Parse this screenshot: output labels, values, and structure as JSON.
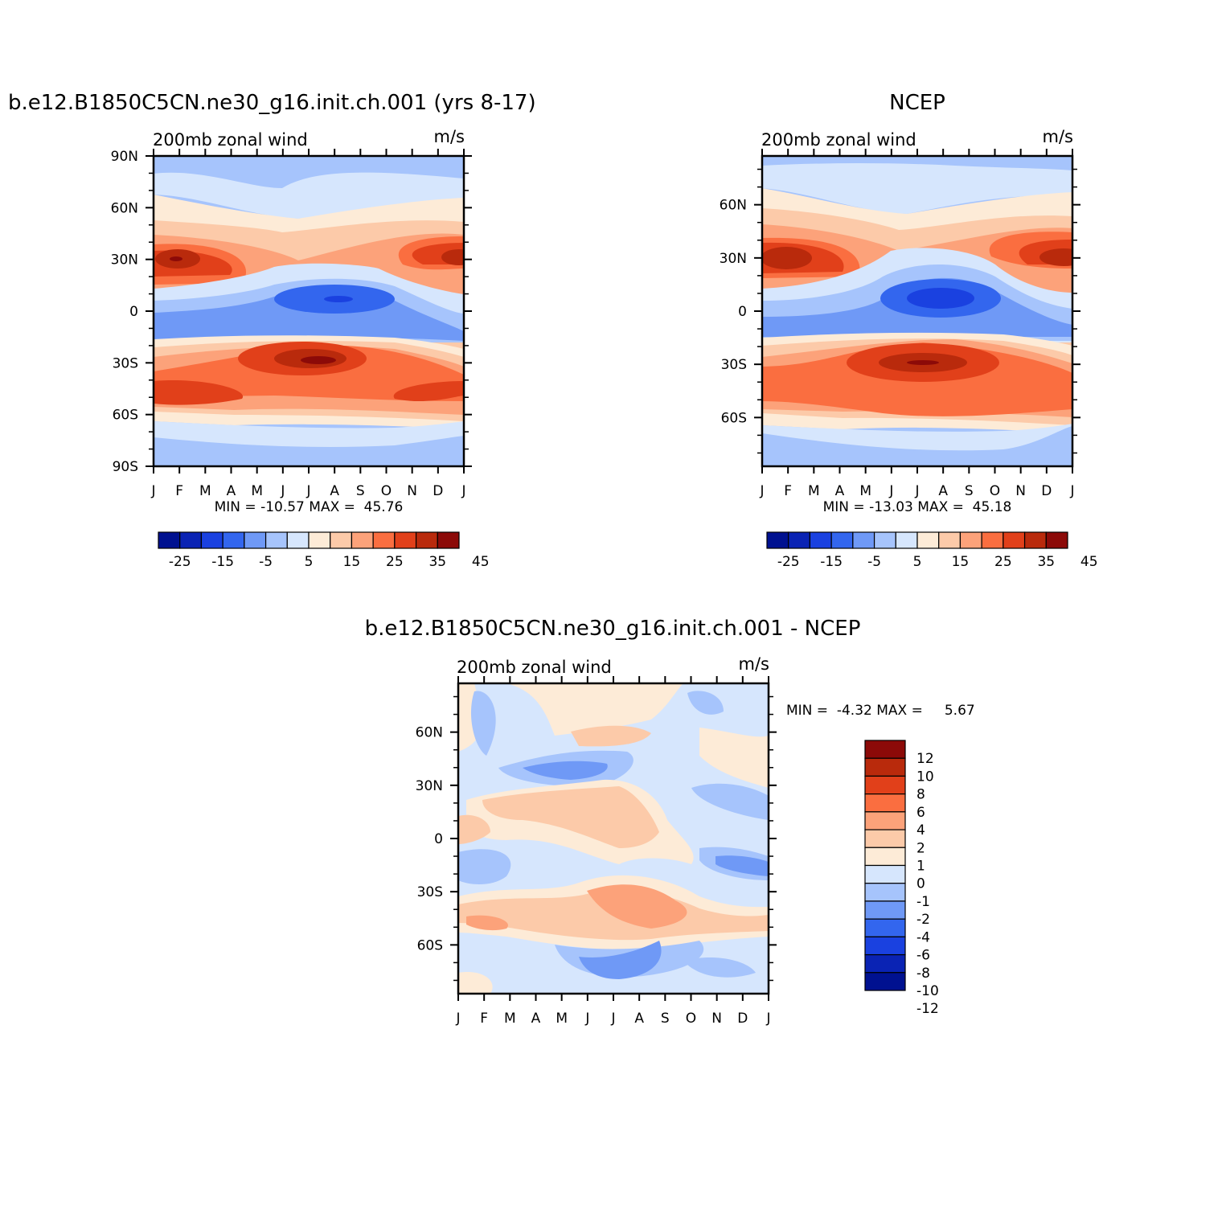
{
  "colors": {
    "field_palette": [
      "#001190",
      "#0a23b4",
      "#1a41e0",
      "#3366ee",
      "#6f99f6",
      "#a6c4fc",
      "#d6e6fd",
      "#fdebd7",
      "#fccaa9",
      "#fca27a",
      "#fa6e40",
      "#e1401a",
      "#b92a0c",
      "#8c0a08"
    ],
    "diff_palette": [
      "#001190",
      "#0a23b4",
      "#1a41e0",
      "#3366ee",
      "#6f99f6",
      "#a6c4fc",
      "#d6e6fd",
      "#fdebd7",
      "#fccaa9",
      "#fca27a",
      "#fa6e40",
      "#e1401a",
      "#b92a0c",
      "#8c0a08"
    ]
  },
  "chart_data": [
    {
      "type": "heatmap",
      "title": "b.e12.B1850C5CN.ne30_g16.init.ch.001 (yrs 8-17)",
      "subtitle_left": "200mb zonal wind",
      "subtitle_right": "m/s",
      "xlabels": [
        "J",
        "F",
        "M",
        "A",
        "M",
        "J",
        "J",
        "A",
        "S",
        "O",
        "N",
        "D",
        "J"
      ],
      "ylabels": [
        "90N",
        "60N",
        "30N",
        "0",
        "30S",
        "60S",
        "90S"
      ],
      "ylabel_values": [
        90,
        60,
        30,
        0,
        -30,
        -60,
        -90
      ],
      "ylim": [
        -90,
        90
      ],
      "minmax_text": "MIN = -10.57 MAX =  45.76",
      "min": -10.57,
      "max": 45.76,
      "colorbar_labels": [
        "-25",
        "-15",
        "-5",
        "5",
        "15",
        "25",
        "35",
        "45"
      ],
      "colorbar_levels": [
        -30,
        -25,
        -20,
        -15,
        -10,
        -5,
        0,
        5,
        10,
        15,
        20,
        25,
        30,
        35,
        40,
        45,
        50
      ],
      "field": "model"
    },
    {
      "type": "heatmap",
      "title": "NCEP",
      "subtitle_left": "200mb zonal wind",
      "subtitle_right": "m/s",
      "xlabels": [
        "J",
        "F",
        "M",
        "A",
        "M",
        "J",
        "J",
        "A",
        "S",
        "O",
        "N",
        "D",
        "J"
      ],
      "ylabels": [
        "60N",
        "30N",
        "0",
        "30S",
        "60S"
      ],
      "ylabel_values": [
        60,
        30,
        0,
        -30,
        -60
      ],
      "ylim": [
        -87.5,
        87.5
      ],
      "minmax_text": "MIN = -13.03 MAX =  45.18",
      "min": -13.03,
      "max": 45.18,
      "colorbar_labels": [
        "-25",
        "-15",
        "-5",
        "5",
        "15",
        "25",
        "35",
        "45"
      ],
      "colorbar_levels": [
        -30,
        -25,
        -20,
        -15,
        -10,
        -5,
        0,
        5,
        10,
        15,
        20,
        25,
        30,
        35,
        40,
        45,
        50
      ],
      "field": "ncep"
    },
    {
      "type": "heatmap",
      "title": "b.e12.B1850C5CN.ne30_g16.init.ch.001 - NCEP",
      "subtitle_left": "200mb zonal wind",
      "subtitle_right": "m/s",
      "xlabels": [
        "J",
        "F",
        "M",
        "A",
        "M",
        "J",
        "J",
        "A",
        "S",
        "O",
        "N",
        "D",
        "J"
      ],
      "ylabels": [
        "60N",
        "30N",
        "0",
        "30S",
        "60S"
      ],
      "ylabel_values": [
        60,
        30,
        0,
        -30,
        -60
      ],
      "ylim": [
        -87.5,
        87.5
      ],
      "minmax_text": "MIN =  -4.32 MAX =     5.67",
      "min": -4.32,
      "max": 5.67,
      "colorbar_labels": [
        "12",
        "10",
        "8",
        "6",
        "4",
        "2",
        "1",
        "0",
        "-1",
        "-2",
        "-4",
        "-6",
        "-8",
        "-10",
        "-12"
      ],
      "colorbar_levels": [
        -12,
        -10,
        -8,
        -6,
        -4,
        -2,
        -1,
        0,
        1,
        2,
        4,
        6,
        8,
        10,
        12
      ],
      "field": "diff"
    }
  ]
}
